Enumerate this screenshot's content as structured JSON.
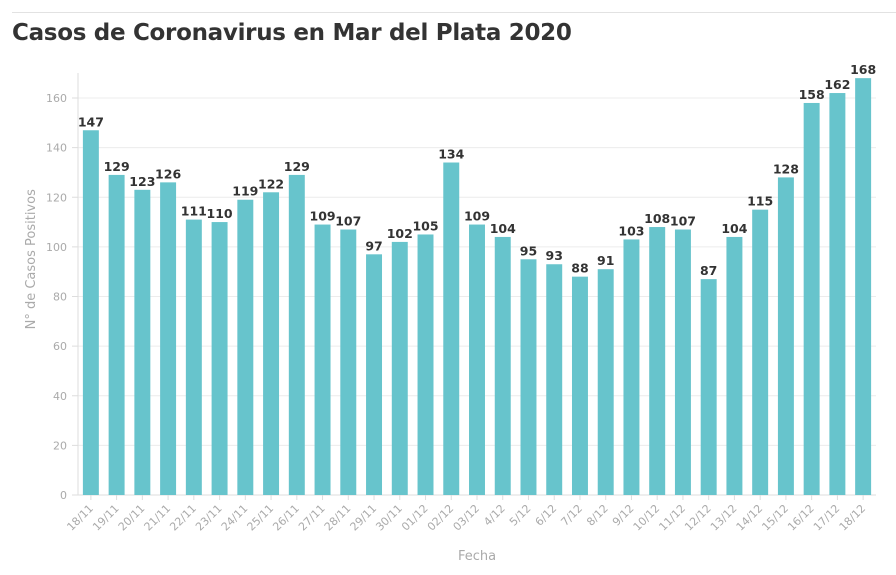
{
  "header": {
    "title": "Casos de Coronavirus en Mar del Plata 2020"
  },
  "colors": {
    "bar": "#67c4cc",
    "grid": "#ececec",
    "axis": "#dddddd",
    "tick_text": "#aaaaaa",
    "label_text": "#333333"
  },
  "chart_data": {
    "type": "bar",
    "title": "Casos de Coronavirus en Mar del Plata 2020",
    "xlabel": "Fecha",
    "ylabel": "N° de Casos Positivos",
    "ylim": [
      0,
      170
    ],
    "yticks": [
      0,
      20,
      40,
      60,
      80,
      100,
      120,
      140,
      160
    ],
    "grid": true,
    "legend": "none",
    "categories": [
      "18/11",
      "19/11",
      "20/11",
      "21/11",
      "22/11",
      "23/11",
      "24/11",
      "25/11",
      "26/11",
      "27/11",
      "28/11",
      "29/11",
      "30/11",
      "01/12",
      "02/12",
      "03/12",
      "4/12",
      "5/12",
      "6/12",
      "7/12",
      "8/12",
      "9/12",
      "10/12",
      "11/12",
      "12/12",
      "13/12",
      "14/12",
      "15/12",
      "16/12",
      "17/12",
      "18/12"
    ],
    "values": [
      147,
      129,
      123,
      126,
      111,
      110,
      119,
      122,
      129,
      109,
      107,
      97,
      102,
      105,
      134,
      109,
      104,
      95,
      93,
      88,
      91,
      103,
      108,
      107,
      87,
      104,
      115,
      128,
      158,
      162,
      168
    ]
  }
}
